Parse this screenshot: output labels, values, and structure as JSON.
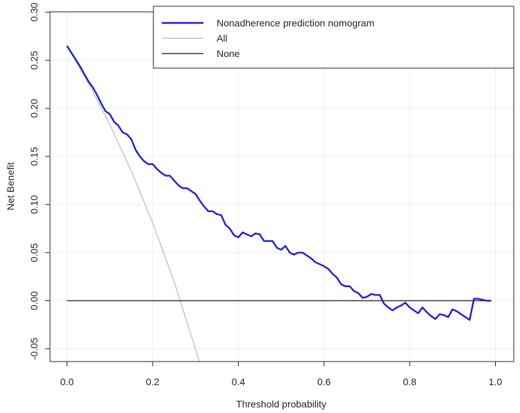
{
  "chart_data": {
    "type": "line",
    "xlabel": "Threshold probability",
    "ylabel": "Net Benefit",
    "xlim": [
      0.0,
      1.0
    ],
    "ylim": [
      -0.06,
      0.3
    ],
    "x_ticks": [
      "0.0",
      "0.2",
      "0.4",
      "0.6",
      "0.8",
      "1.0"
    ],
    "x_tick_values": [
      0.0,
      0.2,
      0.4,
      0.6,
      0.8,
      1.0
    ],
    "y_ticks": [
      "-0.05",
      "0.00",
      "0.05",
      "0.10",
      "0.15",
      "0.20",
      "0.25",
      "0.30"
    ],
    "y_tick_values": [
      -0.05,
      0.0,
      0.05,
      0.1,
      0.15,
      0.2,
      0.25,
      0.3
    ],
    "grid": true,
    "legend_position": "top-right",
    "series": [
      {
        "name": "Nonadherence prediction nomogram",
        "color": "#1a1adf",
        "x": [
          0.0,
          0.01,
          0.02,
          0.03,
          0.04,
          0.05,
          0.06,
          0.07,
          0.08,
          0.09,
          0.1,
          0.11,
          0.12,
          0.13,
          0.14,
          0.15,
          0.16,
          0.17,
          0.18,
          0.19,
          0.2,
          0.21,
          0.22,
          0.23,
          0.24,
          0.25,
          0.26,
          0.27,
          0.28,
          0.29,
          0.3,
          0.31,
          0.32,
          0.33,
          0.34,
          0.35,
          0.36,
          0.37,
          0.38,
          0.39,
          0.4,
          0.41,
          0.42,
          0.43,
          0.44,
          0.45,
          0.46,
          0.47,
          0.48,
          0.49,
          0.5,
          0.51,
          0.52,
          0.53,
          0.54,
          0.55,
          0.56,
          0.57,
          0.58,
          0.59,
          0.6,
          0.61,
          0.62,
          0.63,
          0.64,
          0.65,
          0.66,
          0.67,
          0.68,
          0.69,
          0.7,
          0.71,
          0.72,
          0.73,
          0.74,
          0.75,
          0.76,
          0.77,
          0.78,
          0.79,
          0.8,
          0.81,
          0.82,
          0.83,
          0.84,
          0.85,
          0.86,
          0.87,
          0.88,
          0.89,
          0.9,
          0.91,
          0.92,
          0.93,
          0.94,
          0.95,
          0.96,
          0.97,
          0.98,
          0.99
        ],
        "values": [
          0.265,
          0.258,
          0.251,
          0.244,
          0.236,
          0.228,
          0.222,
          0.214,
          0.205,
          0.197,
          0.194,
          0.186,
          0.182,
          0.175,
          0.173,
          0.168,
          0.157,
          0.15,
          0.145,
          0.142,
          0.142,
          0.137,
          0.133,
          0.13,
          0.13,
          0.125,
          0.12,
          0.117,
          0.117,
          0.114,
          0.111,
          0.104,
          0.098,
          0.093,
          0.093,
          0.09,
          0.089,
          0.079,
          0.075,
          0.068,
          0.066,
          0.071,
          0.069,
          0.067,
          0.07,
          0.069,
          0.062,
          0.062,
          0.062,
          0.055,
          0.053,
          0.057,
          0.05,
          0.048,
          0.05,
          0.05,
          0.047,
          0.044,
          0.04,
          0.038,
          0.036,
          0.033,
          0.028,
          0.024,
          0.017,
          0.015,
          0.015,
          0.01,
          0.008,
          0.003,
          0.004,
          0.007,
          0.006,
          0.006,
          -0.003,
          -0.007,
          -0.01,
          -0.007,
          -0.005,
          -0.002,
          -0.007,
          -0.01,
          -0.013,
          -0.007,
          -0.012,
          -0.016,
          -0.019,
          -0.014,
          -0.015,
          -0.017,
          -0.009,
          -0.011,
          -0.014,
          -0.017,
          -0.02,
          0.002,
          0.002,
          0.001,
          0.0,
          0.0
        ]
      },
      {
        "name": "All",
        "color": "#c0c0c0",
        "x": [
          0.0,
          0.05,
          0.1,
          0.15,
          0.2,
          0.25,
          0.3,
          0.31
        ],
        "values": [
          0.265,
          0.226,
          0.183,
          0.135,
          0.081,
          0.02,
          -0.05,
          -0.065
        ]
      },
      {
        "name": "None",
        "color": "#333333",
        "x": [
          0.0,
          0.99
        ],
        "values": [
          0.0,
          0.0
        ]
      }
    ]
  }
}
